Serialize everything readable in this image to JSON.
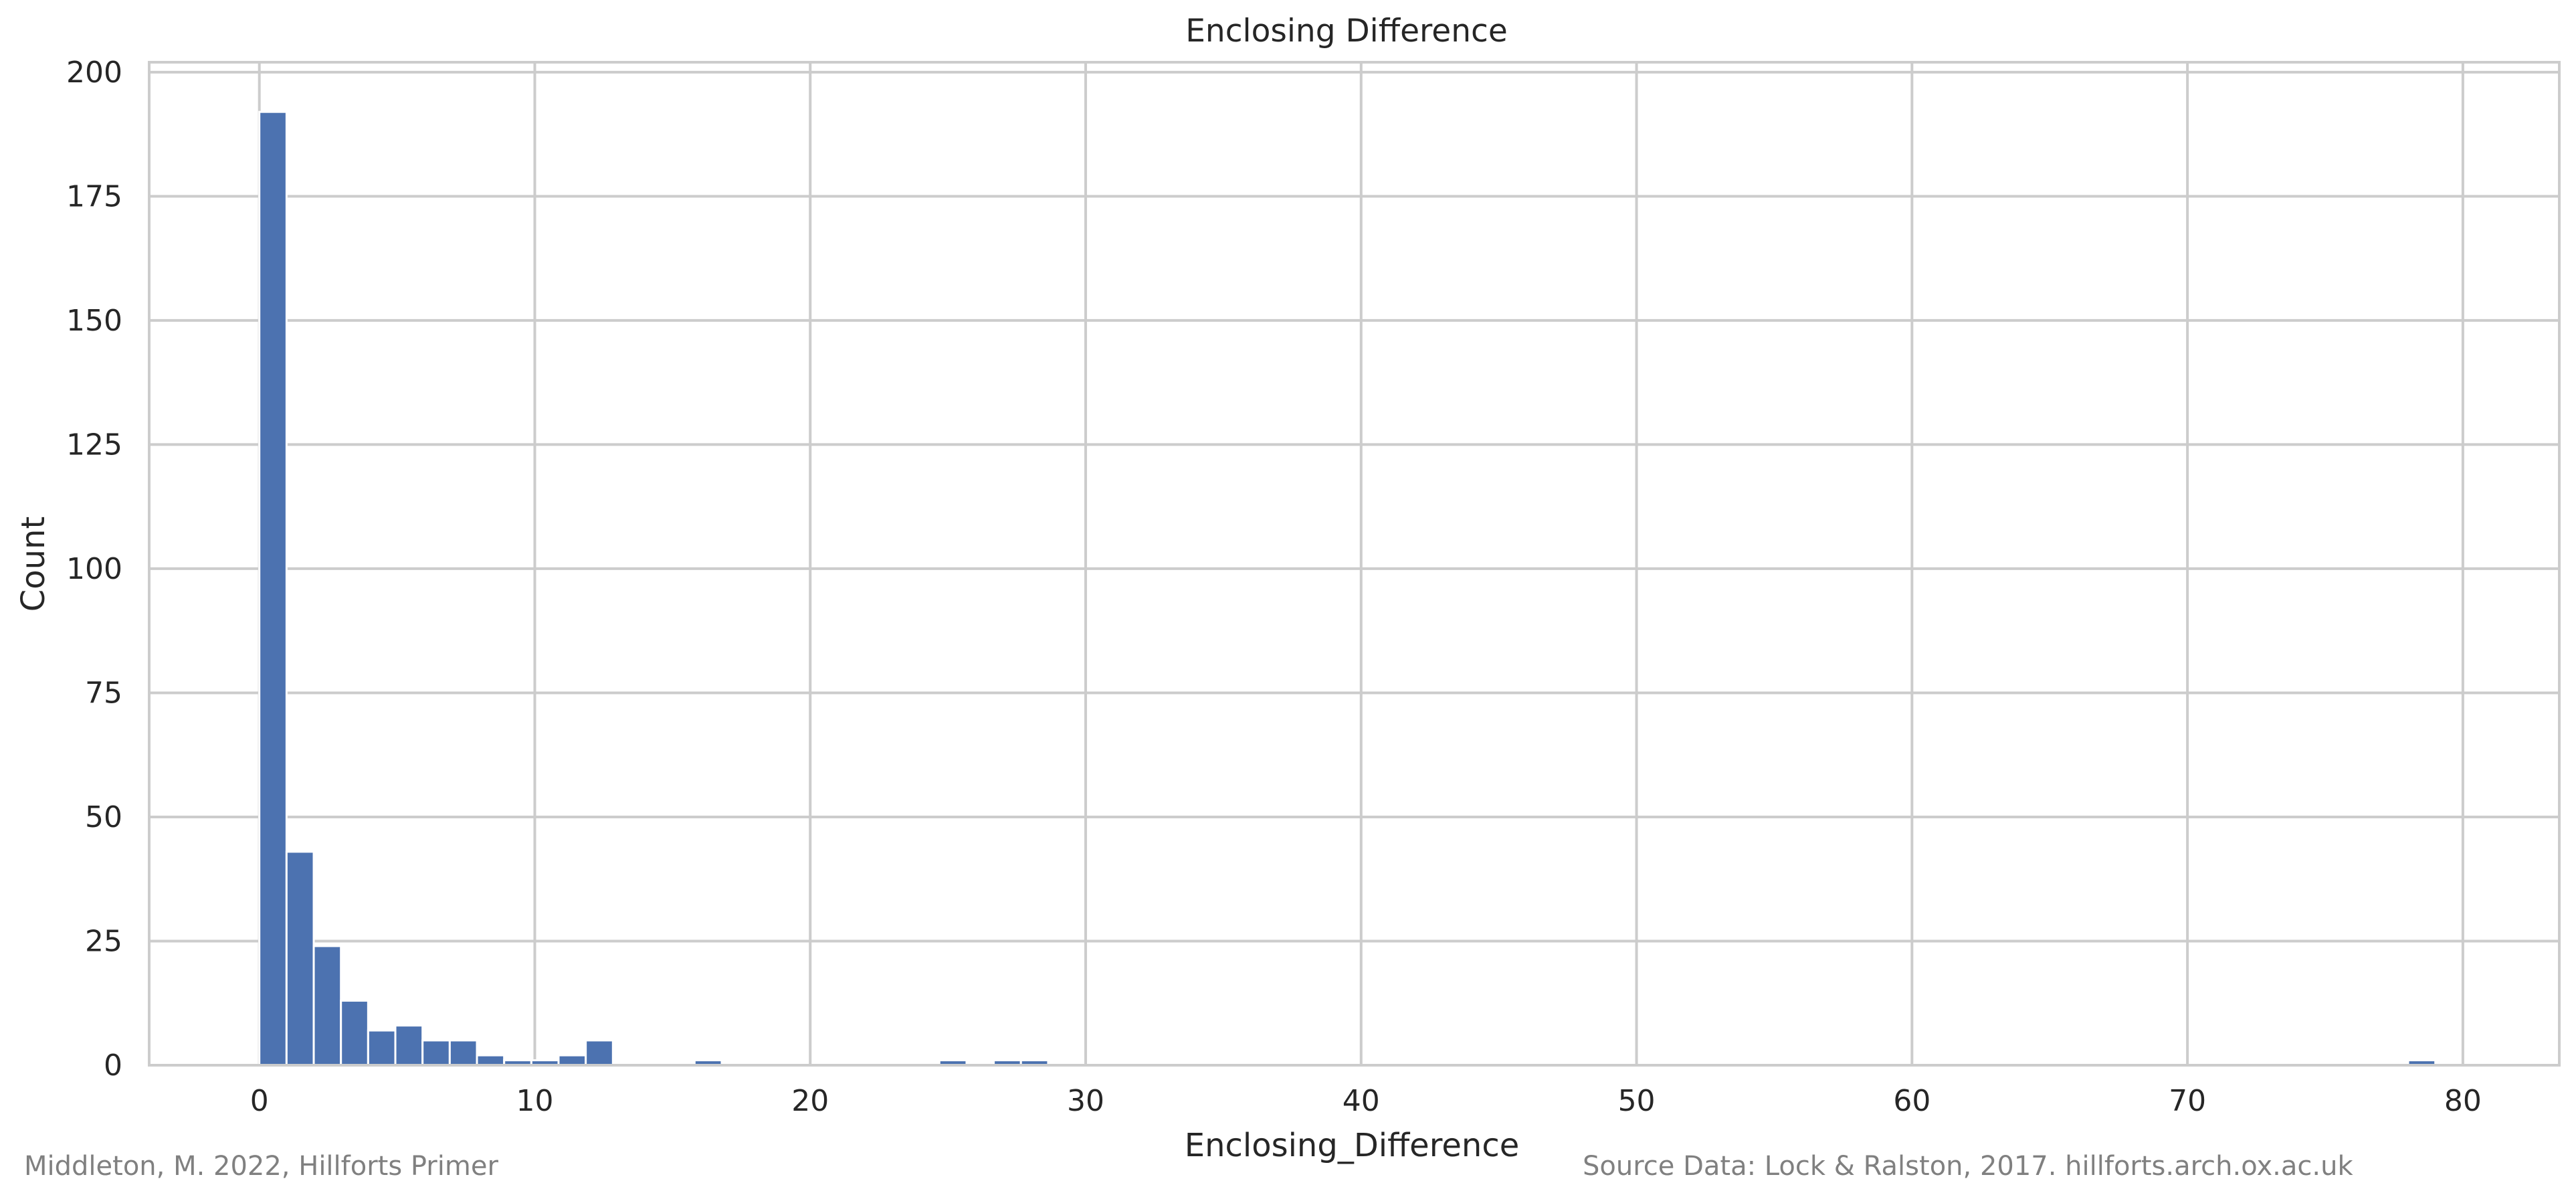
{
  "chart_data": {
    "type": "bar",
    "title": "Enclosing Difference",
    "xlabel": "Enclosing_Difference",
    "ylabel": "Count",
    "xlim": [
      -4,
      83.5
    ],
    "ylim": [
      0,
      202
    ],
    "xticks": [
      0,
      10,
      20,
      30,
      40,
      50,
      60,
      70,
      80
    ],
    "yticks": [
      0,
      25,
      50,
      75,
      100,
      125,
      150,
      175,
      200
    ],
    "grid": true,
    "bar_color": "#4c72b0",
    "bin_width": 0.9875,
    "bins": [
      {
        "x": 0.0,
        "count": 192
      },
      {
        "x": 0.9875,
        "count": 43
      },
      {
        "x": 1.975,
        "count": 24
      },
      {
        "x": 2.9625,
        "count": 13
      },
      {
        "x": 3.95,
        "count": 7
      },
      {
        "x": 4.9375,
        "count": 8
      },
      {
        "x": 5.925,
        "count": 5
      },
      {
        "x": 6.9125,
        "count": 5
      },
      {
        "x": 7.9,
        "count": 2
      },
      {
        "x": 8.8875,
        "count": 1
      },
      {
        "x": 9.875,
        "count": 1
      },
      {
        "x": 10.8625,
        "count": 2
      },
      {
        "x": 11.85,
        "count": 5
      },
      {
        "x": 15.8,
        "count": 1
      },
      {
        "x": 24.6875,
        "count": 1
      },
      {
        "x": 26.6625,
        "count": 1
      },
      {
        "x": 27.65,
        "count": 1
      },
      {
        "x": 78.0125,
        "count": 1
      }
    ]
  },
  "credits": {
    "left": "Middleton, M. 2022, Hillforts Primer",
    "right": "Source Data: Lock & Ralston, 2017. hillforts.arch.ox.ac.uk"
  }
}
